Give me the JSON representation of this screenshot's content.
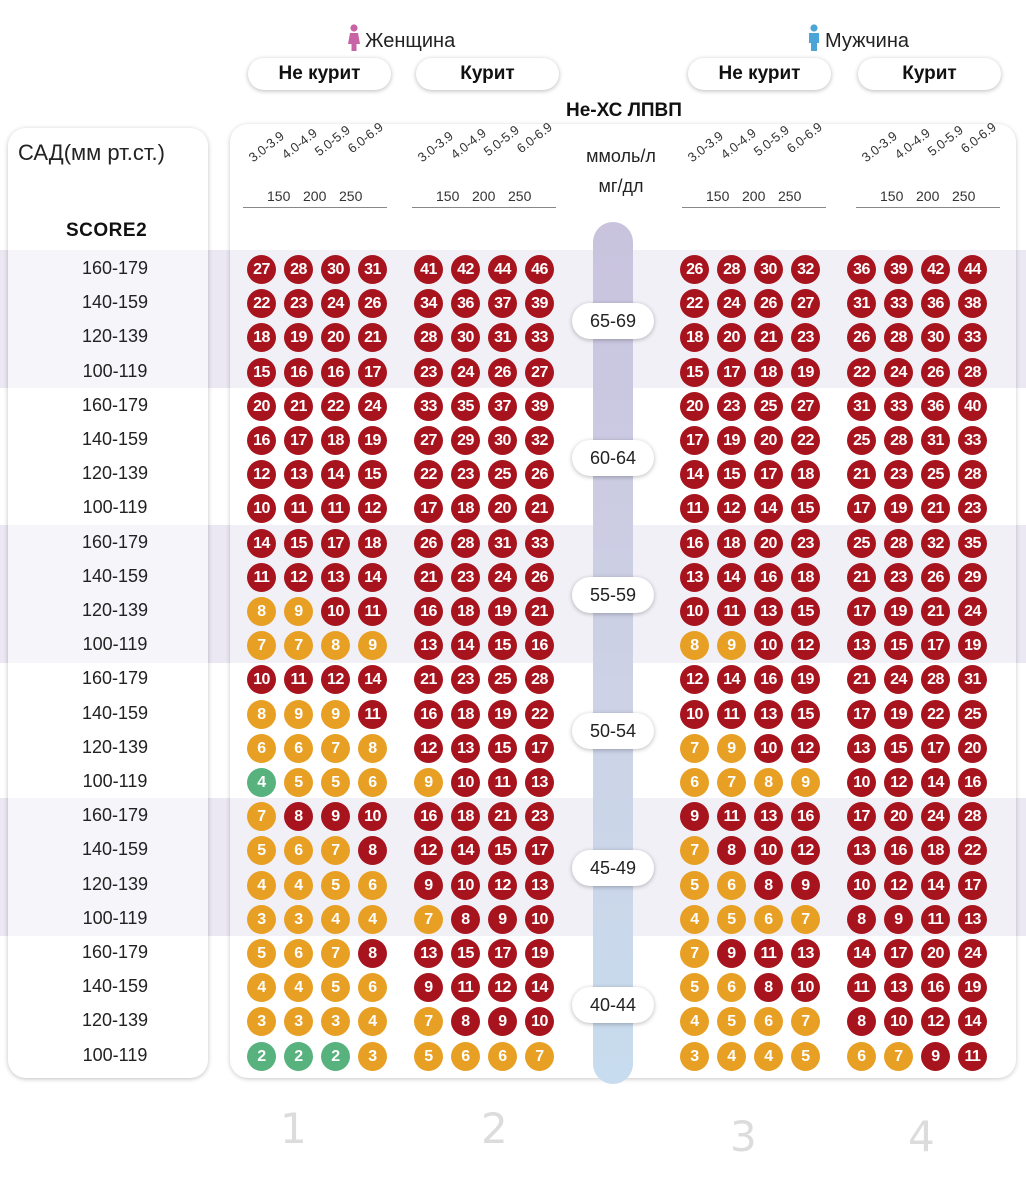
{
  "header": {
    "female_label": "Женщина",
    "male_label": "Мужчина",
    "female_icon": "female-icon",
    "male_icon": "male-icon",
    "female_color": "#c863a6",
    "male_color": "#4aa6d6"
  },
  "pills": [
    "Не курит",
    "Курит",
    "Не курит",
    "Курит"
  ],
  "nonhdl_title": "Не-ХС ЛПВП",
  "unit_mmol": "ммоль/л",
  "unit_mg": "мг/дл",
  "sbp_title": "САД(мм рт.ст.)",
  "score_title": "SCORE2",
  "axis": {
    "ranges": [
      "3.0-3.9",
      "4.0-4.9",
      "5.0-5.9",
      "6.0-6.9"
    ],
    "mg_ticks": [
      "150",
      "200",
      "250"
    ]
  },
  "panel_numbers": [
    "1",
    "2",
    "3",
    "4"
  ],
  "colors": {
    "red": "#a8141e",
    "orange": "#e8a024",
    "green": "#58b27e"
  },
  "chart_data": {
    "type": "table",
    "title": "SCORE2",
    "row_variable": "САД(мм рт.ст.)",
    "col_variable": "Не-ХС ЛПВП",
    "col_categories": [
      "3.0-3.9",
      "4.0-4.9",
      "5.0-5.9",
      "6.0-6.9"
    ],
    "sbp_categories": [
      "160-179",
      "140-159",
      "120-139",
      "100-119"
    ],
    "age_groups": [
      "65-69",
      "60-64",
      "55-59",
      "50-54",
      "45-49",
      "40-44"
    ],
    "panels": [
      {
        "name": "Женщина Не курит",
        "values": [
          [
            27,
            28,
            30,
            31
          ],
          [
            22,
            23,
            24,
            26
          ],
          [
            18,
            19,
            20,
            21
          ],
          [
            15,
            16,
            16,
            17
          ],
          [
            20,
            21,
            22,
            24
          ],
          [
            16,
            17,
            18,
            19
          ],
          [
            12,
            13,
            14,
            15
          ],
          [
            10,
            11,
            11,
            12
          ],
          [
            14,
            15,
            17,
            18
          ],
          [
            11,
            12,
            13,
            14
          ],
          [
            8,
            9,
            10,
            11
          ],
          [
            7,
            7,
            8,
            9
          ],
          [
            10,
            11,
            12,
            14
          ],
          [
            8,
            9,
            9,
            11
          ],
          [
            6,
            6,
            7,
            8
          ],
          [
            4,
            5,
            5,
            6
          ],
          [
            7,
            8,
            9,
            10
          ],
          [
            5,
            6,
            7,
            8
          ],
          [
            4,
            4,
            5,
            6
          ],
          [
            3,
            3,
            4,
            4
          ],
          [
            5,
            6,
            7,
            8
          ],
          [
            4,
            4,
            5,
            6
          ],
          [
            3,
            3,
            3,
            4
          ],
          [
            2,
            2,
            2,
            3
          ]
        ],
        "colors": [
          "RRRR",
          "RRRR",
          "RRRR",
          "RRRR",
          "RRRR",
          "RRRR",
          "RRRR",
          "RRRR",
          "RRRR",
          "RRRR",
          "OORR",
          "OOOO",
          "RRRR",
          "OOOR",
          "OOOO",
          "GOOO",
          "ORRR",
          "OOOR",
          "OOOO",
          "OOOO",
          "OOOR",
          "OOOO",
          "OOOO",
          "GGGO"
        ]
      },
      {
        "name": "Женщина Курит",
        "values": [
          [
            41,
            42,
            44,
            46
          ],
          [
            34,
            36,
            37,
            39
          ],
          [
            28,
            30,
            31,
            33
          ],
          [
            23,
            24,
            26,
            27
          ],
          [
            33,
            35,
            37,
            39
          ],
          [
            27,
            29,
            30,
            32
          ],
          [
            22,
            23,
            25,
            26
          ],
          [
            17,
            18,
            20,
            21
          ],
          [
            26,
            28,
            31,
            33
          ],
          [
            21,
            23,
            24,
            26
          ],
          [
            16,
            18,
            19,
            21
          ],
          [
            13,
            14,
            15,
            16
          ],
          [
            21,
            23,
            25,
            28
          ],
          [
            16,
            18,
            19,
            22
          ],
          [
            12,
            13,
            15,
            17
          ],
          [
            9,
            10,
            11,
            13
          ],
          [
            16,
            18,
            21,
            23
          ],
          [
            12,
            14,
            15,
            17
          ],
          [
            9,
            10,
            12,
            13
          ],
          [
            7,
            8,
            9,
            10
          ],
          [
            13,
            15,
            17,
            19
          ],
          [
            9,
            11,
            12,
            14
          ],
          [
            7,
            8,
            9,
            10
          ],
          [
            5,
            6,
            6,
            7
          ]
        ],
        "colors": [
          "RRRR",
          "RRRR",
          "RRRR",
          "RRRR",
          "RRRR",
          "RRRR",
          "RRRR",
          "RRRR",
          "RRRR",
          "RRRR",
          "RRRR",
          "RRRR",
          "RRRR",
          "RRRR",
          "RRRR",
          "ORRR",
          "RRRR",
          "RRRR",
          "RRRR",
          "ORRR",
          "RRRR",
          "RRRR",
          "ORRR",
          "OOOO"
        ]
      },
      {
        "name": "Мужчина Не курит",
        "values": [
          [
            26,
            28,
            30,
            32
          ],
          [
            22,
            24,
            26,
            27
          ],
          [
            18,
            20,
            21,
            23
          ],
          [
            15,
            17,
            18,
            19
          ],
          [
            20,
            23,
            25,
            27
          ],
          [
            17,
            19,
            20,
            22
          ],
          [
            14,
            15,
            17,
            18
          ],
          [
            11,
            12,
            14,
            15
          ],
          [
            16,
            18,
            20,
            23
          ],
          [
            13,
            14,
            16,
            18
          ],
          [
            10,
            11,
            13,
            15
          ],
          [
            8,
            9,
            10,
            12
          ],
          [
            12,
            14,
            16,
            19
          ],
          [
            10,
            11,
            13,
            15
          ],
          [
            7,
            9,
            10,
            12
          ],
          [
            6,
            7,
            8,
            9
          ],
          [
            9,
            11,
            13,
            16
          ],
          [
            7,
            8,
            10,
            12
          ],
          [
            5,
            6,
            8,
            9
          ],
          [
            4,
            5,
            6,
            7
          ],
          [
            7,
            9,
            11,
            13
          ],
          [
            5,
            6,
            8,
            10
          ],
          [
            4,
            5,
            6,
            7
          ],
          [
            3,
            4,
            4,
            5
          ]
        ],
        "colors": [
          "RRRR",
          "RRRR",
          "RRRR",
          "RRRR",
          "RRRR",
          "RRRR",
          "RRRR",
          "RRRR",
          "RRRR",
          "RRRR",
          "RRRR",
          "OORR",
          "RRRR",
          "RRRR",
          "OORR",
          "OOOO",
          "RRRR",
          "ORRR",
          "OORR",
          "OOOO",
          "ORRR",
          "OORR",
          "OOOO",
          "OOOO"
        ]
      },
      {
        "name": "Мужчина Курит",
        "values": [
          [
            36,
            39,
            42,
            44
          ],
          [
            31,
            33,
            36,
            38
          ],
          [
            26,
            28,
            30,
            33
          ],
          [
            22,
            24,
            26,
            28
          ],
          [
            31,
            33,
            36,
            40
          ],
          [
            25,
            28,
            31,
            33
          ],
          [
            21,
            23,
            25,
            28
          ],
          [
            17,
            19,
            21,
            23
          ],
          [
            25,
            28,
            32,
            35
          ],
          [
            21,
            23,
            26,
            29
          ],
          [
            17,
            19,
            21,
            24
          ],
          [
            13,
            15,
            17,
            19
          ],
          [
            21,
            24,
            28,
            31
          ],
          [
            17,
            19,
            22,
            25
          ],
          [
            13,
            15,
            17,
            20
          ],
          [
            10,
            12,
            14,
            16
          ],
          [
            17,
            20,
            24,
            28
          ],
          [
            13,
            16,
            18,
            22
          ],
          [
            10,
            12,
            14,
            17
          ],
          [
            8,
            9,
            11,
            13
          ],
          [
            14,
            17,
            20,
            24
          ],
          [
            11,
            13,
            16,
            19
          ],
          [
            8,
            10,
            12,
            14
          ],
          [
            6,
            7,
            9,
            11
          ]
        ],
        "colors": [
          "RRRR",
          "RRRR",
          "RRRR",
          "RRRR",
          "RRRR",
          "RRRR",
          "RRRR",
          "RRRR",
          "RRRR",
          "RRRR",
          "RRRR",
          "RRRR",
          "RRRR",
          "RRRR",
          "RRRR",
          "RRRR",
          "RRRR",
          "RRRR",
          "RRRR",
          "RRRR",
          "RRRR",
          "RRRR",
          "RRRR",
          "OORR"
        ]
      }
    ]
  }
}
